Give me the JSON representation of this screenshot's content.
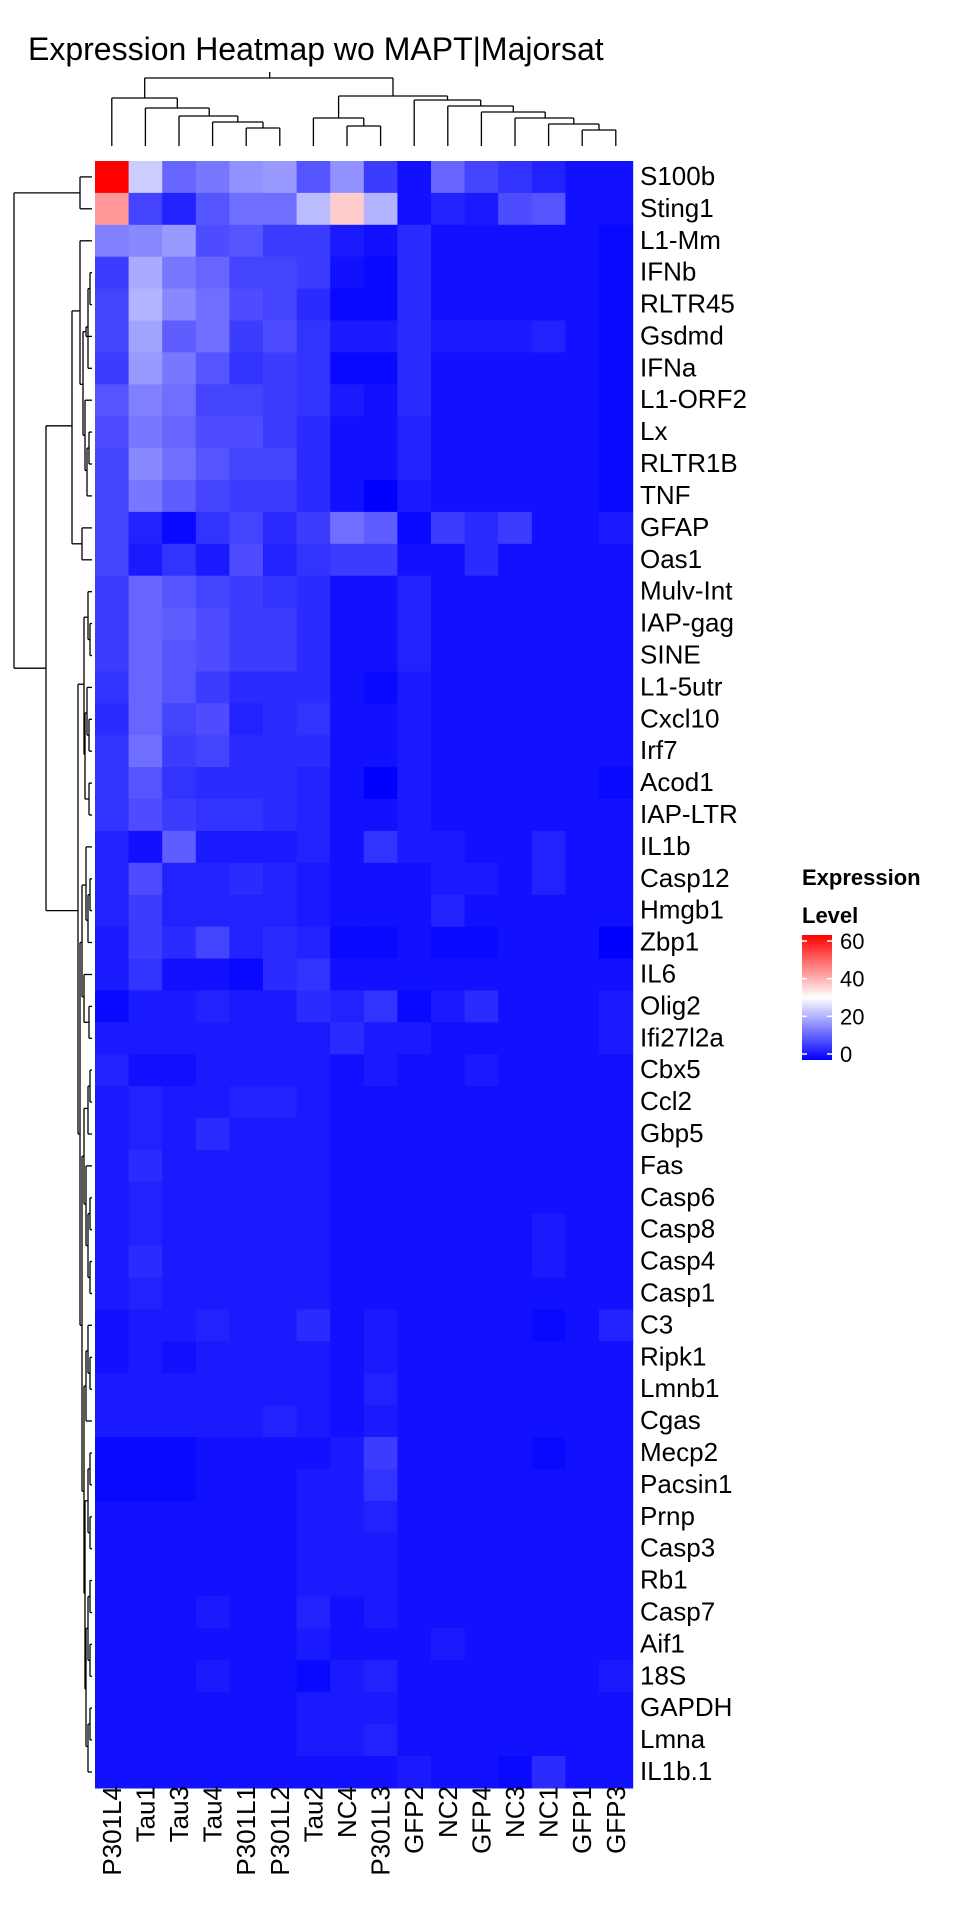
{
  "chart_data": {
    "type": "heatmap",
    "title": "Expression Heatmap wo MAPT|Majorsat",
    "legend": {
      "title_line1": "Expression",
      "title_line2": "Level",
      "ticks": [
        0,
        20,
        40,
        60
      ],
      "range": [
        0,
        60
      ],
      "colors": [
        "#0000ff",
        "#ffffff",
        "#ff0000"
      ],
      "placement": "right"
    },
    "columns": [
      "P301L4",
      "Tau1",
      "Tau3",
      "Tau4",
      "P301L1",
      "P301L2",
      "Tau2",
      "NC4",
      "P301L3",
      "GFP2",
      "NC2",
      "GFP4",
      "NC3",
      "NC1",
      "GFP1",
      "GFP3"
    ],
    "rows": [
      "S100b",
      "Sting1",
      "L1-Mm",
      "IFNb",
      "RLTR45",
      "Gsdmd",
      "IFNa",
      "L1-ORF2",
      "Lx",
      "RLTR1B",
      "TNF",
      "GFAP",
      "Oas1",
      "Mulv-Int",
      "IAP-gag",
      "SINE",
      "L1-5utr",
      "Cxcl10",
      "Irf7",
      "Acod1",
      "IAP-LTR",
      "IL1b",
      "Casp12",
      "Hmgb1",
      "Zbp1",
      "IL6",
      "Olig2",
      "Ifi27l2a",
      "Cbx5",
      "Ccl2",
      "Gbp5",
      "Fas",
      "Casp6",
      "Casp8",
      "Casp4",
      "Casp1",
      "C3",
      "Ripk1",
      "Lmnb1",
      "Cgas",
      "Mecp2",
      "Pacsin1",
      "Prnp",
      "Casp3",
      "Rb1",
      "Casp7",
      "Aif1",
      "18S",
      "GAPDH",
      "Lmna",
      "IL1b.1"
    ],
    "values": [
      [
        60,
        24,
        12,
        14,
        17,
        18,
        10,
        17,
        7,
        2,
        12,
        8,
        6,
        4,
        2,
        2
      ],
      [
        42,
        8,
        4,
        10,
        13,
        13,
        22,
        36,
        21,
        2,
        4,
        3,
        9,
        10,
        2,
        2
      ],
      [
        15,
        16,
        18,
        9,
        10,
        7,
        7,
        3,
        2,
        5,
        2,
        2,
        2,
        2,
        2,
        1
      ],
      [
        7,
        20,
        14,
        12,
        8,
        8,
        7,
        2,
        1,
        5,
        2,
        2,
        2,
        2,
        2,
        1
      ],
      [
        8,
        21,
        16,
        13,
        9,
        8,
        5,
        1,
        1,
        5,
        2,
        2,
        2,
        2,
        2,
        1
      ],
      [
        8,
        19,
        11,
        13,
        7,
        9,
        6,
        3,
        3,
        5,
        3,
        3,
        3,
        4,
        2,
        1
      ],
      [
        7,
        18,
        14,
        10,
        6,
        7,
        6,
        1,
        1,
        5,
        2,
        2,
        2,
        2,
        2,
        1
      ],
      [
        10,
        15,
        13,
        8,
        8,
        7,
        6,
        3,
        2,
        5,
        2,
        2,
        2,
        2,
        2,
        1
      ],
      [
        9,
        14,
        12,
        9,
        9,
        7,
        5,
        2,
        2,
        4,
        2,
        2,
        2,
        2,
        2,
        1
      ],
      [
        8,
        16,
        13,
        10,
        8,
        8,
        5,
        2,
        2,
        4,
        2,
        2,
        2,
        2,
        2,
        1
      ],
      [
        8,
        14,
        11,
        8,
        7,
        7,
        5,
        2,
        0,
        3,
        2,
        2,
        2,
        2,
        2,
        1
      ],
      [
        8,
        4,
        1,
        6,
        8,
        5,
        7,
        13,
        11,
        1,
        7,
        5,
        7,
        2,
        2,
        3
      ],
      [
        8,
        3,
        6,
        3,
        9,
        4,
        6,
        7,
        7,
        2,
        2,
        5,
        2,
        2,
        2,
        2
      ],
      [
        7,
        12,
        10,
        8,
        7,
        6,
        5,
        2,
        2,
        4,
        2,
        2,
        2,
        2,
        2,
        2
      ],
      [
        7,
        12,
        11,
        9,
        7,
        7,
        5,
        2,
        2,
        4,
        2,
        2,
        2,
        2,
        2,
        2
      ],
      [
        7,
        12,
        10,
        9,
        7,
        7,
        5,
        2,
        2,
        4,
        2,
        2,
        2,
        2,
        2,
        2
      ],
      [
        6,
        12,
        10,
        7,
        5,
        5,
        5,
        2,
        1,
        3,
        2,
        2,
        2,
        2,
        2,
        2
      ],
      [
        5,
        12,
        8,
        9,
        4,
        5,
        6,
        2,
        2,
        3,
        2,
        2,
        2,
        2,
        2,
        2
      ],
      [
        6,
        13,
        7,
        8,
        5,
        5,
        5,
        2,
        2,
        3,
        2,
        2,
        2,
        2,
        2,
        2
      ],
      [
        6,
        10,
        6,
        5,
        5,
        5,
        4,
        2,
        0,
        3,
        2,
        2,
        2,
        2,
        2,
        1
      ],
      [
        6,
        9,
        7,
        6,
        6,
        5,
        4,
        2,
        2,
        3,
        2,
        2,
        2,
        2,
        2,
        2
      ],
      [
        4,
        2,
        11,
        3,
        3,
        3,
        4,
        2,
        6,
        3,
        3,
        2,
        2,
        4,
        2,
        2
      ],
      [
        4,
        9,
        4,
        4,
        5,
        4,
        3,
        2,
        2,
        2,
        3,
        3,
        2,
        4,
        2,
        2
      ],
      [
        4,
        7,
        4,
        4,
        4,
        4,
        3,
        2,
        2,
        2,
        4,
        2,
        2,
        2,
        2,
        2
      ],
      [
        3,
        7,
        5,
        8,
        4,
        5,
        4,
        1,
        1,
        2,
        1,
        1,
        2,
        2,
        2,
        0
      ],
      [
        3,
        6,
        2,
        2,
        1,
        5,
        6,
        2,
        2,
        2,
        2,
        2,
        2,
        2,
        2,
        2
      ],
      [
        1,
        3,
        3,
        4,
        3,
        3,
        5,
        4,
        6,
        1,
        3,
        5,
        2,
        2,
        2,
        3
      ],
      [
        3,
        3,
        3,
        3,
        3,
        3,
        3,
        5,
        3,
        3,
        2,
        2,
        2,
        2,
        2,
        3
      ],
      [
        4,
        2,
        2,
        3,
        3,
        3,
        3,
        2,
        3,
        2,
        2,
        3,
        2,
        2,
        2,
        2
      ],
      [
        3,
        4,
        3,
        3,
        4,
        4,
        3,
        2,
        2,
        2,
        2,
        2,
        2,
        2,
        2,
        2
      ],
      [
        3,
        4,
        3,
        5,
        3,
        3,
        3,
        2,
        2,
        2,
        2,
        2,
        2,
        2,
        2,
        2
      ],
      [
        3,
        5,
        3,
        3,
        3,
        3,
        3,
        2,
        2,
        2,
        2,
        2,
        2,
        2,
        2,
        2
      ],
      [
        3,
        4,
        3,
        3,
        3,
        3,
        3,
        2,
        2,
        2,
        2,
        2,
        2,
        2,
        2,
        2
      ],
      [
        3,
        4,
        3,
        3,
        3,
        3,
        3,
        2,
        2,
        2,
        2,
        2,
        2,
        3,
        2,
        2
      ],
      [
        3,
        5,
        3,
        3,
        3,
        3,
        3,
        2,
        2,
        2,
        2,
        2,
        2,
        3,
        2,
        2
      ],
      [
        3,
        4,
        3,
        3,
        3,
        3,
        3,
        2,
        2,
        2,
        2,
        2,
        2,
        2,
        2,
        2
      ],
      [
        2,
        3,
        3,
        4,
        3,
        3,
        5,
        2,
        3,
        2,
        2,
        2,
        2,
        1,
        2,
        4
      ],
      [
        2,
        3,
        2,
        3,
        3,
        3,
        3,
        2,
        3,
        2,
        2,
        2,
        2,
        2,
        2,
        2
      ],
      [
        3,
        3,
        3,
        3,
        3,
        3,
        3,
        2,
        4,
        2,
        2,
        2,
        2,
        2,
        2,
        2
      ],
      [
        3,
        3,
        3,
        3,
        3,
        4,
        3,
        2,
        3,
        2,
        2,
        2,
        2,
        2,
        2,
        2
      ],
      [
        1,
        1,
        1,
        2,
        2,
        2,
        2,
        3,
        7,
        2,
        2,
        2,
        2,
        1,
        2,
        2
      ],
      [
        1,
        1,
        1,
        2,
        2,
        2,
        3,
        3,
        6,
        2,
        2,
        2,
        2,
        2,
        2,
        2
      ],
      [
        2,
        2,
        2,
        2,
        2,
        2,
        3,
        3,
        4,
        2,
        2,
        2,
        2,
        2,
        2,
        2
      ],
      [
        2,
        2,
        2,
        2,
        2,
        2,
        3,
        3,
        3,
        2,
        2,
        2,
        2,
        2,
        2,
        2
      ],
      [
        2,
        2,
        2,
        2,
        2,
        2,
        3,
        3,
        3,
        2,
        2,
        2,
        2,
        2,
        2,
        2
      ],
      [
        2,
        2,
        2,
        3,
        2,
        2,
        4,
        2,
        3,
        2,
        2,
        2,
        2,
        2,
        2,
        2
      ],
      [
        2,
        2,
        2,
        2,
        2,
        2,
        3,
        2,
        2,
        2,
        3,
        2,
        2,
        2,
        2,
        2
      ],
      [
        2,
        2,
        2,
        3,
        2,
        2,
        1,
        3,
        4,
        2,
        2,
        2,
        2,
        2,
        2,
        3
      ],
      [
        2,
        2,
        2,
        2,
        2,
        2,
        3,
        3,
        3,
        2,
        2,
        2,
        2,
        2,
        2,
        2
      ],
      [
        2,
        2,
        2,
        2,
        2,
        2,
        3,
        3,
        4,
        2,
        2,
        2,
        2,
        2,
        2,
        2
      ],
      [
        2,
        2,
        2,
        2,
        2,
        2,
        2,
        2,
        2,
        3,
        2,
        2,
        1,
        5,
        2,
        2
      ]
    ]
  }
}
